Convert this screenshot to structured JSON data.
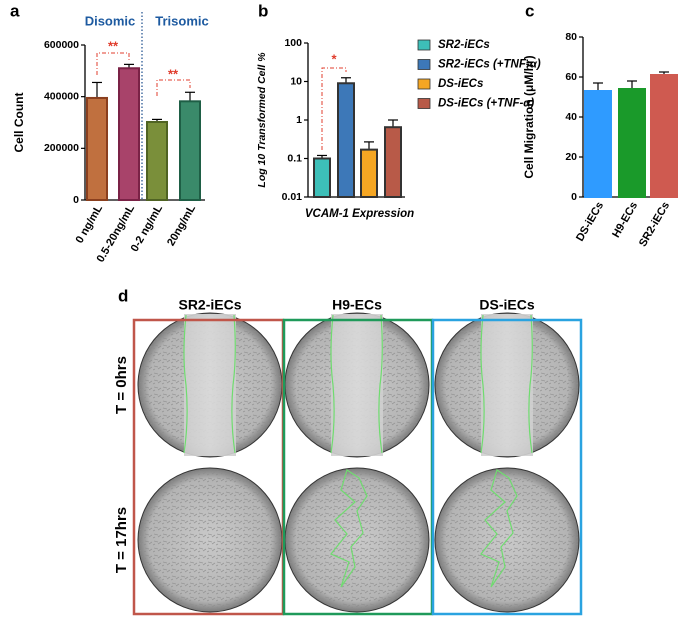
{
  "chart_data": [
    {
      "type": "bar",
      "panel_label": "a",
      "y_label": "Cell Count",
      "categories": [
        "0 ng/mL",
        "0.5-20ng/mL",
        "0-2 ng/mL",
        "20ng/mL"
      ],
      "values": [
        395000,
        510000,
        302000,
        382000
      ],
      "errors": [
        60000,
        15000,
        10000,
        35000
      ],
      "colors": [
        "#c0703f",
        "#a8436a",
        "#7a8f3a",
        "#3a8a6a"
      ],
      "edge_colors": [
        "#8a3f1e",
        "#7a2246",
        "#4f6323",
        "#1e5e45"
      ],
      "ylim": [
        0,
        600000
      ],
      "yticks": [
        0,
        200000,
        400000,
        600000
      ],
      "group_labels": [
        "Disomic",
        "Trisomic"
      ],
      "annotations": [
        "**",
        "**"
      ]
    },
    {
      "type": "bar",
      "panel_label": "b",
      "y_label": "Log 10 Transformed Cell %",
      "x_label": "VCAM-1 Expression",
      "log_scale": true,
      "ylim": [
        0.01,
        100
      ],
      "yticks": [
        0.01,
        0.1,
        1,
        10,
        100
      ],
      "series": [
        {
          "name": "SR2-iECs",
          "color": "#3dbfb8",
          "values": [
            0.1
          ],
          "errors": [
            0.02
          ]
        },
        {
          "name": "SR2-iECs (+TNF-α)",
          "color": "#3d78b8",
          "values": [
            9
          ],
          "errors": [
            3.5
          ]
        },
        {
          "name": "DS-iECs",
          "color": "#f5a623",
          "values": [
            0.17
          ],
          "errors": [
            0.1
          ]
        },
        {
          "name": "DS-iECs (+TNF-α)",
          "color": "#b85a48",
          "values": [
            0.65
          ],
          "errors": [
            0.35
          ]
        }
      ],
      "annotations": [
        "*"
      ]
    },
    {
      "type": "bar",
      "panel_label": "c",
      "y_label": "Cell Migration (μM/hr)",
      "categories": [
        "DS-iECs",
        "H9-ECs",
        "SR2-iECs"
      ],
      "values": [
        53,
        54,
        61
      ],
      "errors": [
        4,
        4,
        1.5
      ],
      "colors": [
        "#2f9bff",
        "#1a9a2a",
        "#cf5a50"
      ],
      "ylim": [
        0,
        80
      ],
      "yticks": [
        0,
        20,
        40,
        60,
        80
      ]
    }
  ],
  "panel_d": {
    "label": "d",
    "columns": [
      "SR2-iECs",
      "H9-ECs",
      "DS-iECs"
    ],
    "rows": [
      "T = 0hrs",
      "T = 17hrs"
    ]
  }
}
